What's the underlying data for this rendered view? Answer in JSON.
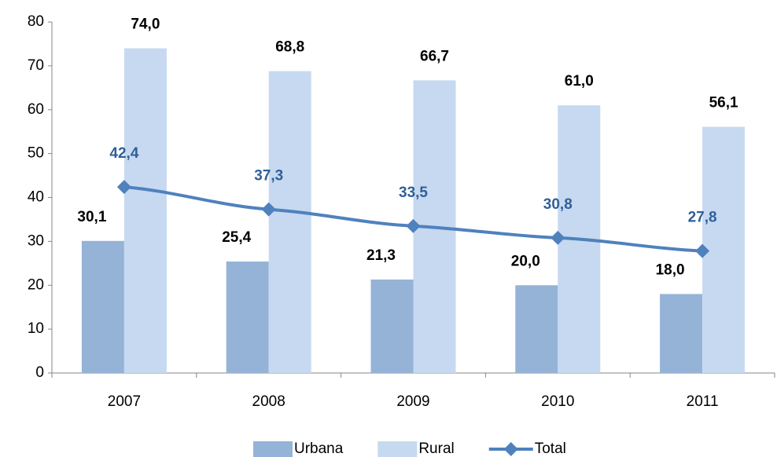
{
  "chart_data": {
    "type": "bar",
    "categories": [
      "2007",
      "2008",
      "2009",
      "2010",
      "2011"
    ],
    "series": [
      {
        "name": "Urbana",
        "type": "bar",
        "color": "#95b3d7",
        "label_color": "#000000",
        "values": [
          30.1,
          25.4,
          21.3,
          20.0,
          18.0
        ],
        "value_labels": [
          "30,1",
          "25,4",
          "21,3",
          "20,0",
          "18,0"
        ]
      },
      {
        "name": "Rural",
        "type": "bar",
        "color": "#c6d9f1",
        "label_color": "#000000",
        "values": [
          74.0,
          68.8,
          66.7,
          61.0,
          56.1
        ],
        "value_labels": [
          "74,0",
          "68,8",
          "66,7",
          "61,0",
          "56,1"
        ]
      },
      {
        "name": "Total",
        "type": "line",
        "color": "#4f81bd",
        "label_color": "#2f5f98",
        "values": [
          42.4,
          37.3,
          33.5,
          30.8,
          27.8
        ],
        "value_labels": [
          "42,4",
          "37,3",
          "33,5",
          "30,8",
          "27,8"
        ]
      }
    ],
    "ylim": [
      0,
      80
    ],
    "yticks": [
      0,
      10,
      20,
      30,
      40,
      50,
      60,
      70,
      80
    ],
    "grid": false,
    "legend": "bottom"
  }
}
